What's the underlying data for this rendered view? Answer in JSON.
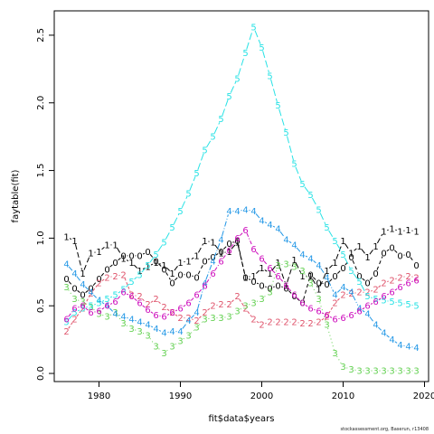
{
  "footer": "stockassessment.org, Baserun, r13408",
  "chart_data": {
    "type": "line",
    "xlabel": "fit$data$years",
    "ylabel": "faytable(fit)",
    "xlim": [
      1974.5,
      2020.5
    ],
    "ylim": [
      -0.06,
      2.68
    ],
    "xticks": [
      1980,
      1990,
      2000,
      2010,
      2020
    ],
    "yticks": [
      0.0,
      0.5,
      1.0,
      1.5,
      2.0,
      2.5
    ],
    "grid": false,
    "legend": "none",
    "x": [
      1976,
      1977,
      1978,
      1979,
      1980,
      1981,
      1982,
      1983,
      1984,
      1985,
      1986,
      1987,
      1988,
      1989,
      1990,
      1991,
      1992,
      1993,
      1994,
      1995,
      1996,
      1997,
      1998,
      1999,
      2000,
      2001,
      2002,
      2003,
      2004,
      2005,
      2006,
      2007,
      2008,
      2009,
      2010,
      2011,
      2012,
      2013,
      2014,
      2015,
      2016,
      2017,
      2018,
      2019
    ],
    "series": [
      {
        "marker": "0",
        "color": "#000000",
        "values": [
          0.7,
          0.63,
          0.58,
          0.63,
          0.7,
          0.77,
          0.82,
          0.87,
          0.87,
          0.87,
          0.9,
          0.83,
          0.77,
          0.67,
          0.73,
          0.73,
          0.71,
          0.83,
          0.86,
          0.9,
          0.96,
          0.98,
          0.71,
          0.68,
          0.65,
          0.63,
          0.65,
          0.63,
          0.57,
          0.52,
          0.73,
          0.67,
          0.66,
          0.72,
          0.78,
          0.86,
          0.72,
          0.67,
          0.74,
          0.89,
          0.93,
          0.87,
          0.88,
          0.8
        ]
      },
      {
        "marker": "1",
        "color": "#000000",
        "values": [
          1.01,
          0.98,
          0.74,
          0.89,
          0.9,
          0.95,
          0.95,
          0.85,
          0.82,
          0.76,
          0.79,
          0.82,
          0.8,
          0.74,
          0.82,
          0.83,
          0.87,
          0.98,
          0.97,
          0.89,
          0.9,
          0.97,
          0.71,
          0.72,
          0.78,
          0.74,
          0.82,
          0.65,
          0.84,
          0.72,
          0.72,
          0.62,
          0.76,
          0.82,
          0.98,
          0.89,
          0.94,
          0.86,
          0.94,
          1.05,
          1.07,
          1.05,
          1.06,
          1.05
        ]
      },
      {
        "marker": "2",
        "color": "#DF536B",
        "values": [
          0.31,
          0.4,
          0.48,
          0.59,
          0.67,
          0.71,
          0.72,
          0.73,
          0.58,
          0.57,
          0.51,
          0.55,
          0.49,
          0.45,
          0.41,
          0.41,
          0.39,
          0.45,
          0.5,
          0.51,
          0.51,
          0.57,
          0.48,
          0.4,
          0.36,
          0.38,
          0.38,
          0.38,
          0.38,
          0.37,
          0.37,
          0.38,
          0.42,
          0.52,
          0.58,
          0.59,
          0.6,
          0.6,
          0.62,
          0.67,
          0.69,
          0.71,
          0.72,
          0.71
        ]
      },
      {
        "marker": "3",
        "color": "#61D04F",
        "values": [
          0.64,
          0.55,
          0.53,
          0.49,
          0.44,
          0.42,
          0.45,
          0.37,
          0.33,
          0.31,
          0.28,
          0.2,
          0.15,
          0.2,
          0.24,
          0.28,
          0.34,
          0.4,
          0.41,
          0.41,
          0.42,
          0.46,
          0.5,
          0.52,
          0.55,
          0.6,
          0.8,
          0.81,
          0.79,
          0.76,
          0.67,
          0.55,
          0.36,
          0.15,
          0.05,
          0.03,
          0.02,
          0.02,
          0.02,
          0.02,
          0.02,
          0.02,
          0.02,
          0.02
        ]
      },
      {
        "marker": "4",
        "color": "#2297E6",
        "values": [
          0.81,
          0.74,
          0.66,
          0.6,
          0.54,
          0.5,
          0.44,
          0.42,
          0.4,
          0.38,
          0.36,
          0.33,
          0.3,
          0.31,
          0.31,
          0.39,
          0.45,
          0.67,
          0.83,
          0.99,
          1.2,
          1.2,
          1.21,
          1.2,
          1.13,
          1.1,
          1.07,
          0.99,
          0.95,
          0.88,
          0.85,
          0.8,
          0.71,
          0.58,
          0.64,
          0.6,
          0.48,
          0.44,
          0.36,
          0.3,
          0.25,
          0.21,
          0.2,
          0.19
        ]
      },
      {
        "marker": "5",
        "color": "#28E2E5",
        "values": [
          0.38,
          0.45,
          0.48,
          0.5,
          0.52,
          0.55,
          0.58,
          0.62,
          0.68,
          0.73,
          0.8,
          0.88,
          0.97,
          1.08,
          1.2,
          1.33,
          1.48,
          1.65,
          1.75,
          1.88,
          2.05,
          2.18,
          2.37,
          2.56,
          2.41,
          2.2,
          1.98,
          1.78,
          1.55,
          1.4,
          1.32,
          1.21,
          1.08,
          0.98,
          0.88,
          0.76,
          0.68,
          0.57,
          0.55,
          0.54,
          0.53,
          0.52,
          0.51,
          0.5
        ]
      },
      {
        "marker": "6",
        "color": "#CD0BBC",
        "values": [
          0.4,
          0.48,
          0.5,
          0.45,
          0.46,
          0.5,
          0.53,
          0.6,
          0.57,
          0.52,
          0.47,
          0.43,
          0.42,
          0.45,
          0.48,
          0.52,
          0.58,
          0.65,
          0.74,
          0.83,
          0.91,
          1.0,
          1.06,
          0.92,
          0.85,
          0.78,
          0.72,
          0.65,
          0.58,
          0.52,
          0.48,
          0.46,
          0.43,
          0.4,
          0.41,
          0.43,
          0.46,
          0.5,
          0.53,
          0.57,
          0.6,
          0.64,
          0.67,
          0.69
        ]
      }
    ]
  }
}
